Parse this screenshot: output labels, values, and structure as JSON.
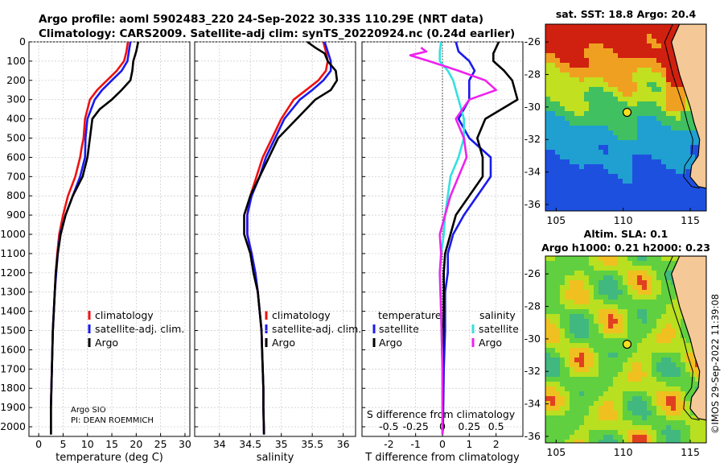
{
  "header": {
    "title_line1": "Argo profile: aoml 5902483_220 24-Sep-2022 30.33S 110.29E (NRT data)",
    "title_line2": "Climatology: CARS2009. Satellite-adj clim: synTS_20220924.nc (0.24d earlier)"
  },
  "credit": {
    "line1": "Argo SIO",
    "line2": "PI: DEAN ROEMMICH"
  },
  "watermark": "©IMOS 29-Sep-2022 11:39:08",
  "colors": {
    "climatology": "#ee1111",
    "satellite_adj": "#1a1aee",
    "argo": "#000000",
    "satellite": "#33e0e0",
    "argo_salinity": "#ee22ee",
    "land": "#f5c898"
  },
  "chart_data": [
    {
      "id": "temperature",
      "type": "line",
      "xlabel": "temperature (deg C)",
      "ylabel": "",
      "xlim": [
        -2,
        31
      ],
      "ylim": [
        2050,
        0
      ],
      "xticks": [
        0,
        5,
        10,
        15,
        20,
        25,
        30
      ],
      "yticks": [
        0,
        100,
        200,
        300,
        400,
        500,
        600,
        700,
        800,
        900,
        1000,
        1100,
        1200,
        1300,
        1400,
        1500,
        1600,
        1700,
        1800,
        1900,
        2000
      ],
      "legend": [
        "climatology",
        "satellite-adj. clim.",
        "Argo"
      ],
      "legend_position": "center-right",
      "series": [
        {
          "name": "climatology",
          "color": "#ee1111",
          "points": [
            [
              18.3,
              0
            ],
            [
              18.0,
              50
            ],
            [
              17.5,
              100
            ],
            [
              16.0,
              150
            ],
            [
              14.0,
              200
            ],
            [
              12.0,
              250
            ],
            [
              10.5,
              300
            ],
            [
              9.5,
              400
            ],
            [
              9.2,
              500
            ],
            [
              8.8,
              550
            ],
            [
              8.5,
              600
            ],
            [
              7.5,
              700
            ],
            [
              6.0,
              800
            ],
            [
              5.0,
              900
            ],
            [
              4.2,
              1000
            ],
            [
              3.8,
              1100
            ],
            [
              3.5,
              1200
            ],
            [
              3.3,
              1300
            ],
            [
              3.1,
              1400
            ],
            [
              2.9,
              1500
            ],
            [
              2.8,
              1600
            ],
            [
              2.7,
              1700
            ],
            [
              2.6,
              1800
            ],
            [
              2.5,
              1900
            ],
            [
              2.5,
              2040
            ]
          ]
        },
        {
          "name": "satellite-adj. clim.",
          "color": "#1a1aee",
          "points": [
            [
              18.8,
              0
            ],
            [
              18.5,
              50
            ],
            [
              18.2,
              100
            ],
            [
              17.0,
              150
            ],
            [
              15.0,
              200
            ],
            [
              13.0,
              250
            ],
            [
              11.5,
              300
            ],
            [
              10.0,
              400
            ],
            [
              9.6,
              500
            ],
            [
              9.5,
              600
            ],
            [
              8.5,
              700
            ],
            [
              7.0,
              800
            ],
            [
              5.5,
              900
            ],
            [
              4.4,
              1000
            ],
            [
              3.9,
              1100
            ],
            [
              3.6,
              1200
            ],
            [
              3.3,
              1300
            ],
            [
              3.1,
              1400
            ],
            [
              2.9,
              1500
            ],
            [
              2.8,
              1600
            ],
            [
              2.7,
              1700
            ],
            [
              2.6,
              1800
            ],
            [
              2.5,
              1900
            ],
            [
              2.5,
              2040
            ]
          ]
        },
        {
          "name": "Argo",
          "color": "#000000",
          "points": [
            [
              20.4,
              0
            ],
            [
              20.0,
              50
            ],
            [
              19.4,
              100
            ],
            [
              19.2,
              150
            ],
            [
              18.8,
              200
            ],
            [
              17.0,
              250
            ],
            [
              15.0,
              300
            ],
            [
              12.5,
              350
            ],
            [
              11.0,
              400
            ],
            [
              10.5,
              500
            ],
            [
              10.0,
              600
            ],
            [
              9.0,
              700
            ],
            [
              7.0,
              800
            ],
            [
              5.5,
              900
            ],
            [
              4.5,
              1000
            ],
            [
              3.9,
              1100
            ],
            [
              3.5,
              1200
            ],
            [
              3.3,
              1300
            ],
            [
              3.1,
              1400
            ],
            [
              2.9,
              1500
            ],
            [
              2.8,
              1600
            ],
            [
              2.7,
              1700
            ],
            [
              2.6,
              1800
            ],
            [
              2.5,
              1900
            ],
            [
              2.5,
              2040
            ]
          ]
        }
      ]
    },
    {
      "id": "salinity",
      "type": "line",
      "xlabel": "salinity",
      "xlim": [
        33.6,
        36.2
      ],
      "ylim": [
        2050,
        0
      ],
      "xticks": [
        34,
        34.5,
        35,
        35.5,
        36
      ],
      "legend": [
        "climatology",
        "satellite-adj. clim.",
        "Argo"
      ],
      "legend_position": "center-right",
      "series": [
        {
          "name": "climatology",
          "color": "#ee1111",
          "points": [
            [
              35.68,
              0
            ],
            [
              35.72,
              50
            ],
            [
              35.75,
              100
            ],
            [
              35.72,
              150
            ],
            [
              35.6,
              200
            ],
            [
              35.4,
              250
            ],
            [
              35.2,
              300
            ],
            [
              35.0,
              400
            ],
            [
              34.85,
              500
            ],
            [
              34.7,
              600
            ],
            [
              34.6,
              700
            ],
            [
              34.5,
              800
            ],
            [
              34.45,
              900
            ],
            [
              34.45,
              1000
            ],
            [
              34.52,
              1100
            ],
            [
              34.58,
              1200
            ],
            [
              34.62,
              1300
            ],
            [
              34.65,
              1400
            ],
            [
              34.68,
              1500
            ],
            [
              34.69,
              1600
            ],
            [
              34.7,
              1700
            ],
            [
              34.71,
              1800
            ],
            [
              34.71,
              1900
            ],
            [
              34.72,
              2040
            ]
          ]
        },
        {
          "name": "satellite-adj. clim.",
          "color": "#1a1aee",
          "points": [
            [
              35.7,
              0
            ],
            [
              35.75,
              50
            ],
            [
              35.8,
              100
            ],
            [
              35.8,
              150
            ],
            [
              35.68,
              200
            ],
            [
              35.5,
              250
            ],
            [
              35.3,
              300
            ],
            [
              35.05,
              400
            ],
            [
              34.9,
              500
            ],
            [
              34.75,
              600
            ],
            [
              34.65,
              700
            ],
            [
              34.52,
              800
            ],
            [
              34.45,
              900
            ],
            [
              34.45,
              1000
            ],
            [
              34.52,
              1100
            ],
            [
              34.58,
              1200
            ],
            [
              34.62,
              1300
            ],
            [
              34.65,
              1400
            ],
            [
              34.68,
              1500
            ],
            [
              34.69,
              1600
            ],
            [
              34.7,
              1700
            ],
            [
              34.71,
              1800
            ],
            [
              34.71,
              1900
            ],
            [
              34.72,
              2040
            ]
          ]
        },
        {
          "name": "Argo",
          "color": "#000000",
          "points": [
            [
              35.42,
              0
            ],
            [
              35.55,
              30
            ],
            [
              35.7,
              60
            ],
            [
              35.75,
              100
            ],
            [
              35.88,
              150
            ],
            [
              35.9,
              200
            ],
            [
              35.8,
              250
            ],
            [
              35.55,
              300
            ],
            [
              35.25,
              400
            ],
            [
              34.95,
              500
            ],
            [
              34.8,
              600
            ],
            [
              34.65,
              700
            ],
            [
              34.5,
              800
            ],
            [
              34.4,
              900
            ],
            [
              34.4,
              1000
            ],
            [
              34.5,
              1100
            ],
            [
              34.55,
              1200
            ],
            [
              34.62,
              1300
            ],
            [
              34.65,
              1400
            ],
            [
              34.68,
              1500
            ],
            [
              34.69,
              1600
            ],
            [
              34.7,
              1700
            ],
            [
              34.71,
              1800
            ],
            [
              34.71,
              1900
            ],
            [
              34.72,
              2040
            ]
          ]
        }
      ]
    },
    {
      "id": "difference",
      "type": "line",
      "xlabel": "T difference from climatology",
      "xlabel_top": "S difference from climatology",
      "xlim": [
        -3,
        3
      ],
      "ylim": [
        2050,
        0
      ],
      "xticks": [
        -2,
        -1,
        0,
        1,
        2
      ],
      "xticks_s": [
        "-0.5",
        "-0.25",
        "0",
        "0.25",
        "0.5"
      ],
      "legend_t_title": "temperature",
      "legend_t": [
        "satellite",
        "Argo"
      ],
      "legend_s_title": "salinity",
      "legend_s": [
        "satellite",
        "Argo"
      ],
      "series": [
        {
          "name": "T satellite",
          "color": "#1a1aee",
          "points": [
            [
              0.5,
              0
            ],
            [
              0.6,
              50
            ],
            [
              1.0,
              100
            ],
            [
              1.2,
              150
            ],
            [
              1.0,
              200
            ],
            [
              1.0,
              300
            ],
            [
              0.6,
              400
            ],
            [
              1.0,
              500
            ],
            [
              1.8,
              600
            ],
            [
              1.8,
              700
            ],
            [
              1.3,
              800
            ],
            [
              0.8,
              900
            ],
            [
              0.4,
              1000
            ],
            [
              0.2,
              1100
            ],
            [
              0.2,
              1200
            ],
            [
              0.1,
              1300
            ],
            [
              0.1,
              1500
            ],
            [
              0.05,
              1700
            ],
            [
              0.02,
              2000
            ],
            [
              0,
              2040
            ]
          ]
        },
        {
          "name": "T Argo",
          "color": "#000000",
          "points": [
            [
              2.1,
              0
            ],
            [
              2.0,
              30
            ],
            [
              1.9,
              60
            ],
            [
              1.9,
              100
            ],
            [
              2.3,
              150
            ],
            [
              2.6,
              200
            ],
            [
              2.8,
              300
            ],
            [
              1.6,
              400
            ],
            [
              1.3,
              500
            ],
            [
              1.5,
              600
            ],
            [
              1.5,
              700
            ],
            [
              1.0,
              800
            ],
            [
              0.5,
              900
            ],
            [
              0.3,
              1000
            ],
            [
              0.1,
              1100
            ],
            [
              0.05,
              1200
            ],
            [
              0.05,
              1400
            ],
            [
              0.02,
              1600
            ],
            [
              0.02,
              2000
            ],
            [
              0,
              2040
            ]
          ]
        },
        {
          "name": "S satellite",
          "color": "#33e0e0",
          "points": [
            [
              -0.05,
              0
            ],
            [
              -0.1,
              50
            ],
            [
              -0.1,
              100
            ],
            [
              0.2,
              150
            ],
            [
              0.4,
              200
            ],
            [
              0.6,
              300
            ],
            [
              0.8,
              400
            ],
            [
              0.8,
              500
            ],
            [
              0.6,
              600
            ],
            [
              0.3,
              700
            ],
            [
              0.2,
              800
            ],
            [
              0.1,
              900
            ],
            [
              0.05,
              1000
            ],
            [
              -0.05,
              1100
            ],
            [
              -0.1,
              1200
            ],
            [
              -0.05,
              1400
            ],
            [
              0,
              1700
            ],
            [
              0,
              2040
            ]
          ]
        },
        {
          "name": "S Argo",
          "color": "#ee22ee",
          "points": [
            [
              -0.8,
              30
            ],
            [
              -0.6,
              50
            ],
            [
              -1.2,
              70
            ],
            [
              -0.5,
              100
            ],
            [
              0.6,
              150
            ],
            [
              1.6,
              200
            ],
            [
              2.0,
              250
            ],
            [
              1.0,
              300
            ],
            [
              0.5,
              400
            ],
            [
              0.8,
              500
            ],
            [
              0.9,
              600
            ],
            [
              0.6,
              700
            ],
            [
              0.3,
              800
            ],
            [
              0.1,
              900
            ],
            [
              -0.1,
              1000
            ],
            [
              -0.05,
              1100
            ],
            [
              -0.1,
              1200
            ],
            [
              -0.05,
              1400
            ],
            [
              0,
              1700
            ],
            [
              0,
              2040
            ]
          ]
        }
      ]
    },
    {
      "id": "sst_map",
      "type": "heatmap",
      "title": "sat. SST: 18.8 Argo: 20.4",
      "xticks": [
        105,
        110,
        115
      ],
      "yticks": [
        -26,
        -28,
        -30,
        -32,
        -34,
        -36
      ],
      "xlim": [
        104.2,
        116.2
      ],
      "ylim": [
        -36.4,
        -24.9
      ],
      "argo_position": [
        110.29,
        -30.33
      ]
    },
    {
      "id": "sla_map",
      "type": "heatmap",
      "title_line1": "Altim. SLA: 0.1",
      "title_line2": "Argo h1000: 0.21 h2000: 0.23",
      "xticks": [
        105,
        110,
        115
      ],
      "yticks": [
        -26,
        -28,
        -30,
        -32,
        -34,
        -36
      ],
      "xlim": [
        104.2,
        116.2
      ],
      "ylim": [
        -36.4,
        -24.9
      ],
      "argo_position": [
        110.29,
        -30.33
      ]
    }
  ]
}
